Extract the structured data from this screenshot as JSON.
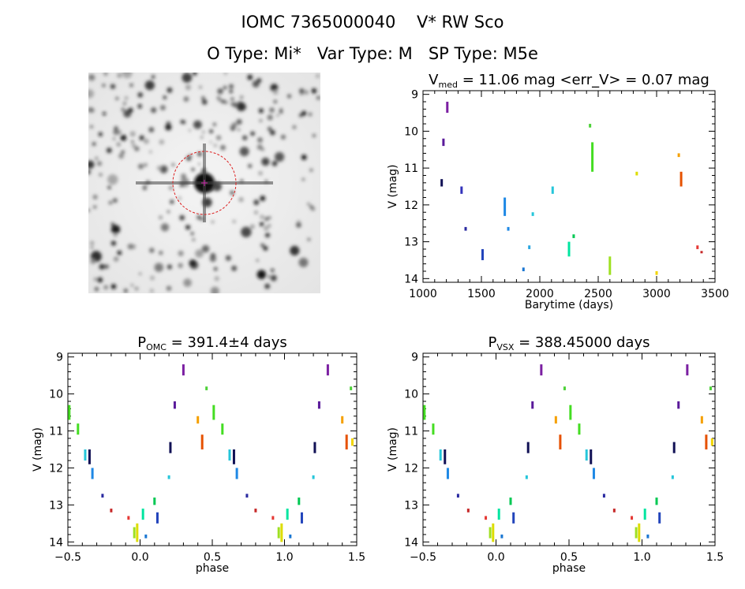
{
  "header": {
    "line1": "IOMC 7365000040    V* RW Sco",
    "line2": "O Type: Mi*   Var Type: M   SP Type: M5e"
  },
  "image_panel": {
    "kind": "grayscale sky image with red circle around target star",
    "colors": {
      "circle": "#dd2222",
      "marker": "#2233cc"
    }
  },
  "chart_data": [
    {
      "type": "scatter",
      "title": {
        "main": "V",
        "sub": "med",
        "rest": " = 11.06 mag <err_V> = 0.07 mag"
      },
      "xlabel": "Barytime (days)",
      "ylabel": "V (mag)",
      "xlim": [
        1000,
        3500
      ],
      "ylim": [
        14.1,
        8.9
      ],
      "y_inverted": true,
      "xticks": [
        1000,
        1500,
        2000,
        2500,
        3000,
        3500
      ],
      "yticks": [
        9,
        10,
        11,
        12,
        13,
        14
      ],
      "clusters": [
        {
          "x": 1208,
          "y0": 9.2,
          "y1": 9.5,
          "color": "#7b1fa2"
        },
        {
          "x": 1175,
          "y0": 10.2,
          "y1": 10.4,
          "color": "#5a1a9a"
        },
        {
          "x": 1160,
          "y0": 11.3,
          "y1": 11.5,
          "color": "#111155"
        },
        {
          "x": 1330,
          "y0": 11.5,
          "y1": 11.7,
          "color": "#3333bb"
        },
        {
          "x": 1365,
          "y0": 12.6,
          "y1": 12.7,
          "color": "#2a2aa0"
        },
        {
          "x": 1510,
          "y0": 13.2,
          "y1": 13.5,
          "color": "#2244bb"
        },
        {
          "x": 1700,
          "y0": 11.8,
          "y1": 12.3,
          "color": "#1e88e5"
        },
        {
          "x": 1730,
          "y0": 12.6,
          "y1": 12.7,
          "color": "#1e88e5"
        },
        {
          "x": 1860,
          "y0": 13.7,
          "y1": 13.8,
          "color": "#1976d2"
        },
        {
          "x": 1910,
          "y0": 13.1,
          "y1": 13.2,
          "color": "#2aa6e0"
        },
        {
          "x": 1940,
          "y0": 12.2,
          "y1": 12.3,
          "color": "#26c6da"
        },
        {
          "x": 2110,
          "y0": 11.5,
          "y1": 11.7,
          "color": "#26c6da"
        },
        {
          "x": 2250,
          "y0": 13.0,
          "y1": 13.4,
          "color": "#00e5a0"
        },
        {
          "x": 2290,
          "y0": 12.8,
          "y1": 12.9,
          "color": "#00c853"
        },
        {
          "x": 2430,
          "y0": 9.8,
          "y1": 9.9,
          "color": "#4cd137"
        },
        {
          "x": 2450,
          "y0": 10.3,
          "y1": 11.1,
          "color": "#44dd22"
        },
        {
          "x": 2600,
          "y0": 13.4,
          "y1": 13.9,
          "color": "#9ee021"
        },
        {
          "x": 2830,
          "y0": 11.1,
          "y1": 11.2,
          "color": "#dddd00"
        },
        {
          "x": 3000,
          "y0": 13.8,
          "y1": 13.9,
          "color": "#f2d500"
        },
        {
          "x": 3190,
          "y0": 10.6,
          "y1": 10.7,
          "color": "#f5a000"
        },
        {
          "x": 3210,
          "y0": 11.1,
          "y1": 11.5,
          "color": "#e65100"
        },
        {
          "x": 3350,
          "y0": 13.1,
          "y1": 13.2,
          "color": "#e53935"
        },
        {
          "x": 3385,
          "y0": 13.25,
          "y1": 13.3,
          "color": "#c62828"
        }
      ]
    },
    {
      "type": "scatter",
      "title": {
        "main": "P",
        "sub": "OMC",
        "rest": " = 391.4±4 days"
      },
      "xlabel": "phase",
      "ylabel": "V (mag)",
      "xlim": [
        -0.5,
        1.5
      ],
      "ylim": [
        14.1,
        8.9
      ],
      "y_inverted": true,
      "xticks": [
        -0.5,
        0.0,
        0.5,
        1.0,
        1.5
      ],
      "yticks": [
        9,
        10,
        11,
        12,
        13,
        14
      ],
      "clusters": [
        {
          "x": -0.49,
          "y0": 10.3,
          "y1": 10.7,
          "color": "#44dd22"
        },
        {
          "x": -0.43,
          "y0": 10.8,
          "y1": 11.1,
          "color": "#44dd22"
        },
        {
          "x": -0.38,
          "y0": 11.5,
          "y1": 11.8,
          "color": "#26c6da"
        },
        {
          "x": -0.35,
          "y0": 11.5,
          "y1": 11.9,
          "color": "#111155"
        },
        {
          "x": -0.33,
          "y0": 12.0,
          "y1": 12.3,
          "color": "#1e88e5"
        },
        {
          "x": -0.26,
          "y0": 12.7,
          "y1": 12.8,
          "color": "#2a2aa0"
        },
        {
          "x": -0.2,
          "y0": 13.1,
          "y1": 13.2,
          "color": "#c62828"
        },
        {
          "x": -0.08,
          "y0": 13.3,
          "y1": 13.4,
          "color": "#e53935"
        },
        {
          "x": -0.04,
          "y0": 13.6,
          "y1": 13.9,
          "color": "#9ee021"
        },
        {
          "x": -0.02,
          "y0": 13.5,
          "y1": 14.0,
          "color": "#dddd00"
        },
        {
          "x": 0.02,
          "y0": 13.1,
          "y1": 13.4,
          "color": "#00e5a0"
        },
        {
          "x": 0.04,
          "y0": 13.8,
          "y1": 13.9,
          "color": "#1976d2"
        },
        {
          "x": 0.1,
          "y0": 12.8,
          "y1": 13.0,
          "color": "#00c853"
        },
        {
          "x": 0.12,
          "y0": 13.2,
          "y1": 13.5,
          "color": "#2244bb"
        },
        {
          "x": 0.2,
          "y0": 12.2,
          "y1": 12.3,
          "color": "#26c6da"
        },
        {
          "x": 0.21,
          "y0": 11.3,
          "y1": 11.6,
          "color": "#111155"
        },
        {
          "x": 0.24,
          "y0": 10.2,
          "y1": 10.4,
          "color": "#5a1a9a"
        },
        {
          "x": 0.3,
          "y0": 9.2,
          "y1": 9.5,
          "color": "#7b1fa2"
        },
        {
          "x": 0.4,
          "y0": 10.6,
          "y1": 10.8,
          "color": "#f5a000"
        },
        {
          "x": 0.43,
          "y0": 11.1,
          "y1": 11.5,
          "color": "#e65100"
        },
        {
          "x": 0.46,
          "y0": 9.8,
          "y1": 9.9,
          "color": "#4cd137"
        },
        {
          "x": 0.51,
          "y0": 10.3,
          "y1": 10.7,
          "color": "#44dd22"
        },
        {
          "x": 0.57,
          "y0": 10.8,
          "y1": 11.1,
          "color": "#44dd22"
        },
        {
          "x": 0.62,
          "y0": 11.5,
          "y1": 11.8,
          "color": "#26c6da"
        },
        {
          "x": 0.65,
          "y0": 11.5,
          "y1": 11.9,
          "color": "#111155"
        },
        {
          "x": 0.67,
          "y0": 12.0,
          "y1": 12.3,
          "color": "#1e88e5"
        },
        {
          "x": 0.74,
          "y0": 12.7,
          "y1": 12.8,
          "color": "#2a2aa0"
        },
        {
          "x": 0.8,
          "y0": 13.1,
          "y1": 13.2,
          "color": "#c62828"
        },
        {
          "x": 0.92,
          "y0": 13.3,
          "y1": 13.4,
          "color": "#e53935"
        },
        {
          "x": 0.96,
          "y0": 13.6,
          "y1": 13.9,
          "color": "#9ee021"
        },
        {
          "x": 0.98,
          "y0": 13.5,
          "y1": 14.0,
          "color": "#dddd00"
        },
        {
          "x": 1.02,
          "y0": 13.1,
          "y1": 13.4,
          "color": "#00e5a0"
        },
        {
          "x": 1.04,
          "y0": 13.8,
          "y1": 13.9,
          "color": "#1976d2"
        },
        {
          "x": 1.1,
          "y0": 12.8,
          "y1": 13.0,
          "color": "#00c853"
        },
        {
          "x": 1.12,
          "y0": 13.2,
          "y1": 13.5,
          "color": "#2244bb"
        },
        {
          "x": 1.2,
          "y0": 12.2,
          "y1": 12.3,
          "color": "#26c6da"
        },
        {
          "x": 1.21,
          "y0": 11.3,
          "y1": 11.6,
          "color": "#111155"
        },
        {
          "x": 1.24,
          "y0": 10.2,
          "y1": 10.4,
          "color": "#5a1a9a"
        },
        {
          "x": 1.3,
          "y0": 9.2,
          "y1": 9.5,
          "color": "#7b1fa2"
        },
        {
          "x": 1.4,
          "y0": 10.6,
          "y1": 10.8,
          "color": "#f5a000"
        },
        {
          "x": 1.43,
          "y0": 11.1,
          "y1": 11.5,
          "color": "#e65100"
        },
        {
          "x": 1.46,
          "y0": 9.8,
          "y1": 9.9,
          "color": "#4cd137"
        },
        {
          "x": 1.47,
          "y0": 11.2,
          "y1": 11.4,
          "color": "#f2d500"
        }
      ]
    },
    {
      "type": "scatter",
      "title": {
        "main": "P",
        "sub": "VSX",
        "rest": " = 388.45000 days"
      },
      "xlabel": "phase",
      "ylabel": "V (mag)",
      "xlim": [
        -0.5,
        1.5
      ],
      "ylim": [
        14.1,
        8.9
      ],
      "y_inverted": true,
      "xticks": [
        -0.5,
        0.0,
        0.5,
        1.0,
        1.5
      ],
      "yticks": [
        9,
        10,
        11,
        12,
        13,
        14
      ],
      "clusters": [
        {
          "x": -0.49,
          "y0": 10.3,
          "y1": 10.7,
          "color": "#44dd22"
        },
        {
          "x": -0.43,
          "y0": 10.8,
          "y1": 11.1,
          "color": "#44dd22"
        },
        {
          "x": -0.38,
          "y0": 11.5,
          "y1": 11.8,
          "color": "#26c6da"
        },
        {
          "x": -0.35,
          "y0": 11.5,
          "y1": 11.9,
          "color": "#111155"
        },
        {
          "x": -0.33,
          "y0": 12.0,
          "y1": 12.3,
          "color": "#1e88e5"
        },
        {
          "x": -0.26,
          "y0": 12.7,
          "y1": 12.8,
          "color": "#2a2aa0"
        },
        {
          "x": -0.19,
          "y0": 13.1,
          "y1": 13.2,
          "color": "#c62828"
        },
        {
          "x": -0.07,
          "y0": 13.3,
          "y1": 13.4,
          "color": "#e53935"
        },
        {
          "x": -0.04,
          "y0": 13.6,
          "y1": 13.9,
          "color": "#9ee021"
        },
        {
          "x": -0.02,
          "y0": 13.5,
          "y1": 14.0,
          "color": "#dddd00"
        },
        {
          "x": 0.02,
          "y0": 13.1,
          "y1": 13.4,
          "color": "#00e5a0"
        },
        {
          "x": 0.04,
          "y0": 13.8,
          "y1": 13.9,
          "color": "#1976d2"
        },
        {
          "x": 0.1,
          "y0": 12.8,
          "y1": 13.0,
          "color": "#00c853"
        },
        {
          "x": 0.12,
          "y0": 13.2,
          "y1": 13.5,
          "color": "#2244bb"
        },
        {
          "x": 0.21,
          "y0": 12.2,
          "y1": 12.3,
          "color": "#26c6da"
        },
        {
          "x": 0.22,
          "y0": 11.3,
          "y1": 11.6,
          "color": "#111155"
        },
        {
          "x": 0.25,
          "y0": 10.2,
          "y1": 10.4,
          "color": "#5a1a9a"
        },
        {
          "x": 0.31,
          "y0": 9.2,
          "y1": 9.5,
          "color": "#7b1fa2"
        },
        {
          "x": 0.41,
          "y0": 10.6,
          "y1": 10.8,
          "color": "#f5a000"
        },
        {
          "x": 0.44,
          "y0": 11.1,
          "y1": 11.5,
          "color": "#e65100"
        },
        {
          "x": 0.47,
          "y0": 9.8,
          "y1": 9.9,
          "color": "#4cd137"
        },
        {
          "x": 0.51,
          "y0": 10.3,
          "y1": 10.7,
          "color": "#44dd22"
        },
        {
          "x": 0.57,
          "y0": 10.8,
          "y1": 11.1,
          "color": "#44dd22"
        },
        {
          "x": 0.62,
          "y0": 11.5,
          "y1": 11.8,
          "color": "#26c6da"
        },
        {
          "x": 0.65,
          "y0": 11.5,
          "y1": 11.9,
          "color": "#111155"
        },
        {
          "x": 0.67,
          "y0": 12.0,
          "y1": 12.3,
          "color": "#1e88e5"
        },
        {
          "x": 0.74,
          "y0": 12.7,
          "y1": 12.8,
          "color": "#2a2aa0"
        },
        {
          "x": 0.81,
          "y0": 13.1,
          "y1": 13.2,
          "color": "#c62828"
        },
        {
          "x": 0.93,
          "y0": 13.3,
          "y1": 13.4,
          "color": "#e53935"
        },
        {
          "x": 0.96,
          "y0": 13.6,
          "y1": 13.9,
          "color": "#9ee021"
        },
        {
          "x": 0.98,
          "y0": 13.5,
          "y1": 14.0,
          "color": "#dddd00"
        },
        {
          "x": 1.02,
          "y0": 13.1,
          "y1": 13.4,
          "color": "#00e5a0"
        },
        {
          "x": 1.04,
          "y0": 13.8,
          "y1": 13.9,
          "color": "#1976d2"
        },
        {
          "x": 1.1,
          "y0": 12.8,
          "y1": 13.0,
          "color": "#00c853"
        },
        {
          "x": 1.12,
          "y0": 13.2,
          "y1": 13.5,
          "color": "#2244bb"
        },
        {
          "x": 1.21,
          "y0": 12.2,
          "y1": 12.3,
          "color": "#26c6da"
        },
        {
          "x": 1.22,
          "y0": 11.3,
          "y1": 11.6,
          "color": "#111155"
        },
        {
          "x": 1.25,
          "y0": 10.2,
          "y1": 10.4,
          "color": "#5a1a9a"
        },
        {
          "x": 1.31,
          "y0": 9.2,
          "y1": 9.5,
          "color": "#7b1fa2"
        },
        {
          "x": 1.41,
          "y0": 10.6,
          "y1": 10.8,
          "color": "#f5a000"
        },
        {
          "x": 1.44,
          "y0": 11.1,
          "y1": 11.5,
          "color": "#e65100"
        },
        {
          "x": 1.47,
          "y0": 9.8,
          "y1": 9.9,
          "color": "#4cd137"
        },
        {
          "x": 1.48,
          "y0": 11.2,
          "y1": 11.4,
          "color": "#f2d500"
        }
      ]
    }
  ]
}
